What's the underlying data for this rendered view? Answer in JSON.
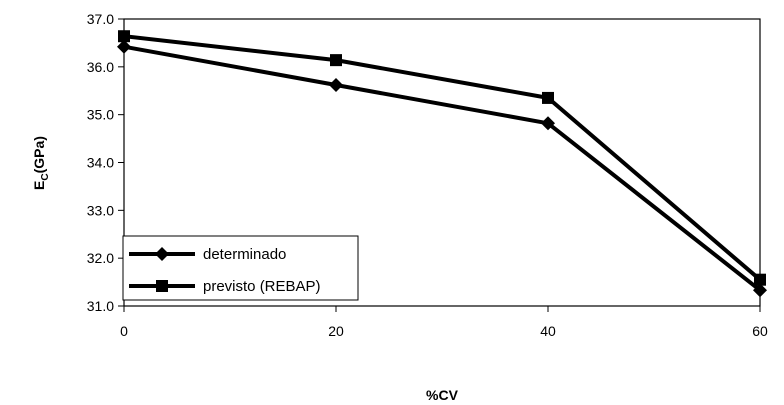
{
  "chart_data": {
    "type": "line",
    "title": "",
    "xlabel": "%CV",
    "ylabel_main": "E",
    "ylabel_sub": "C",
    "ylabel_tail": "(GPa)",
    "x": [
      0,
      20,
      40,
      60
    ],
    "xticks": [
      "0",
      "20",
      "40",
      "60"
    ],
    "ylim": [
      31.0,
      37.0
    ],
    "yticks": [
      "31.0",
      "32.0",
      "33.0",
      "34.0",
      "35.0",
      "36.0",
      "37.0"
    ],
    "grid": false,
    "legend_position": "bottom-left",
    "series": [
      {
        "name": "determinado",
        "marker": "diamond",
        "color": "#000000",
        "values": [
          36.42,
          35.62,
          34.82,
          31.33
        ]
      },
      {
        "name": "previsto (REBAP)",
        "marker": "square",
        "color": "#000000",
        "values": [
          36.64,
          36.14,
          35.35,
          31.55
        ]
      }
    ]
  }
}
